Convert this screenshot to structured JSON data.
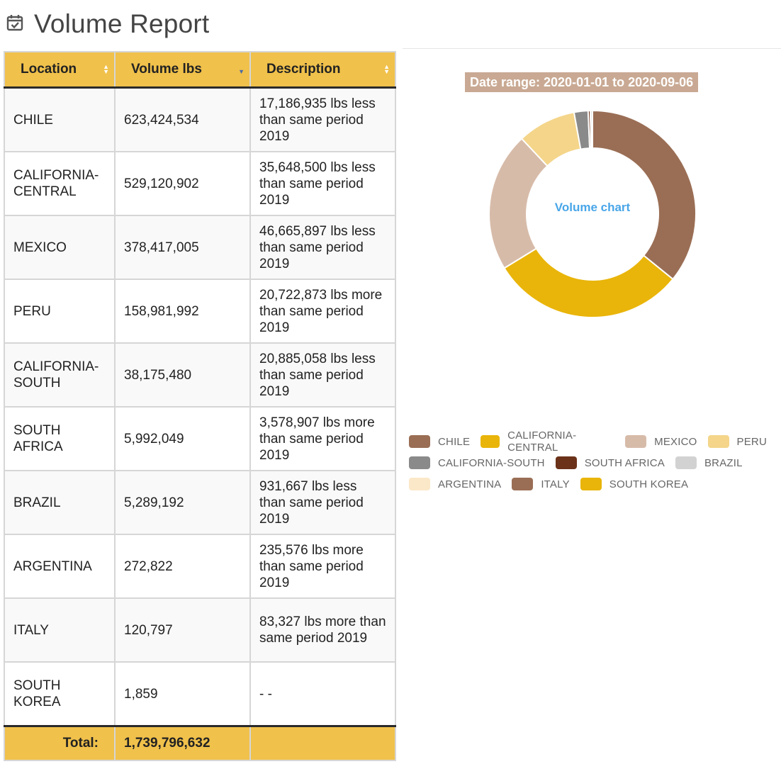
{
  "page": {
    "title": "Volume Report",
    "icon": "calendar-check-icon"
  },
  "table": {
    "columns": [
      {
        "label": "Location",
        "sort": "none"
      },
      {
        "label": "Volume lbs",
        "sort": "desc"
      },
      {
        "label": "Description",
        "sort": "none"
      }
    ],
    "rows": [
      {
        "location": "CHILE",
        "volume": "623,424,534",
        "description": "17,186,935 lbs less than same period 2019"
      },
      {
        "location": "CALIFORNIA-CENTRAL",
        "volume": "529,120,902",
        "description": "35,648,500 lbs less than same period 2019"
      },
      {
        "location": "MEXICO",
        "volume": "378,417,005",
        "description": "46,665,897 lbs less than same period 2019"
      },
      {
        "location": "PERU",
        "volume": "158,981,992",
        "description": "20,722,873 lbs more than same period 2019"
      },
      {
        "location": "CALIFORNIA-SOUTH",
        "volume": "38,175,480",
        "description": "20,885,058 lbs less than same period 2019"
      },
      {
        "location": "SOUTH AFRICA",
        "volume": "5,992,049",
        "description": "3,578,907 lbs more than same period 2019"
      },
      {
        "location": "BRAZIL",
        "volume": "5,289,192",
        "description": "931,667 lbs less than same period 2019"
      },
      {
        "location": "ARGENTINA",
        "volume": "272,822",
        "description": "235,576 lbs more than same period 2019"
      },
      {
        "location": "ITALY",
        "volume": "120,797",
        "description": "83,327 lbs more than same period 2019"
      },
      {
        "location": "SOUTH KOREA",
        "volume": "1,859",
        "description": "- -"
      }
    ],
    "footer": {
      "label": "Total:",
      "volume": "1,739,796,632",
      "description": ""
    }
  },
  "chart_data": {
    "type": "pie",
    "variant": "donut",
    "title": "Date range: 2020-01-01 to 2020-09-06",
    "center_label": "Volume chart",
    "legend_position": "bottom",
    "categories": [
      "CHILE",
      "CALIFORNIA-CENTRAL",
      "MEXICO",
      "PERU",
      "CALIFORNIA-SOUTH",
      "SOUTH AFRICA",
      "BRAZIL",
      "ARGENTINA",
      "ITALY",
      "SOUTH KOREA"
    ],
    "values": [
      623424534,
      529120902,
      378417005,
      158981992,
      38175480,
      5992049,
      5289192,
      272822,
      120797,
      1859
    ],
    "colors": [
      "#9a6e55",
      "#e9b50a",
      "#d7bba9",
      "#f4d58a",
      "#8a8a8a",
      "#6b3219",
      "#d2d2d2",
      "#fbe8c8",
      "#9a6e55",
      "#e9b50a"
    ]
  }
}
